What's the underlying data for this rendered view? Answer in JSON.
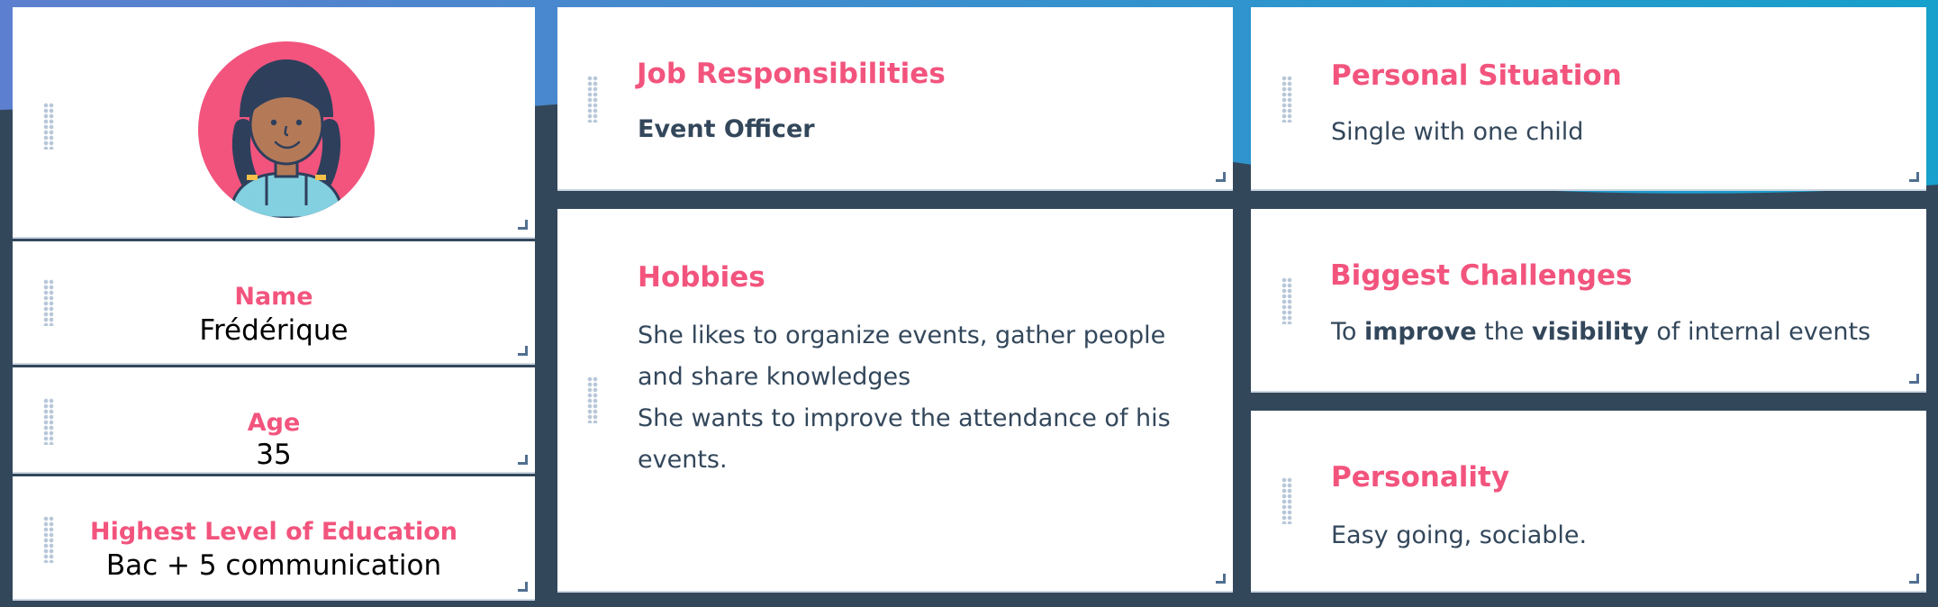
{
  "theme": {
    "background": "#33475b",
    "card": "#ffffff",
    "accent": "#f2547d",
    "text": "#33475b",
    "gradient_start": "#5d7fcf",
    "gradient_end": "#16a0cc"
  },
  "profile": {
    "avatar_icon": "person-avatar-braids-icon",
    "name_label": "Name",
    "name_value": "Frédérique",
    "age_label": "Age",
    "age_value": "35",
    "education_label": "Highest Level of Education",
    "education_value": "Bac + 5 communication"
  },
  "job": {
    "title": "Job Responsibilities",
    "value": "Event Officer"
  },
  "hobbies": {
    "title": "Hobbies",
    "lines": [
      "She likes to organize events, gather people",
      "and share knowledges",
      "She wants to improve the attendance of his",
      "events."
    ]
  },
  "personal": {
    "title": "Personal Situation",
    "value": "Single with one child"
  },
  "challenges": {
    "title": "Biggest Challenges",
    "t1": "To ",
    "b1": "improve",
    "t2": " the ",
    "b2": "visibility",
    "t3": " of internal events"
  },
  "personality": {
    "title": "Personality",
    "value": "Easy going, sociable."
  }
}
